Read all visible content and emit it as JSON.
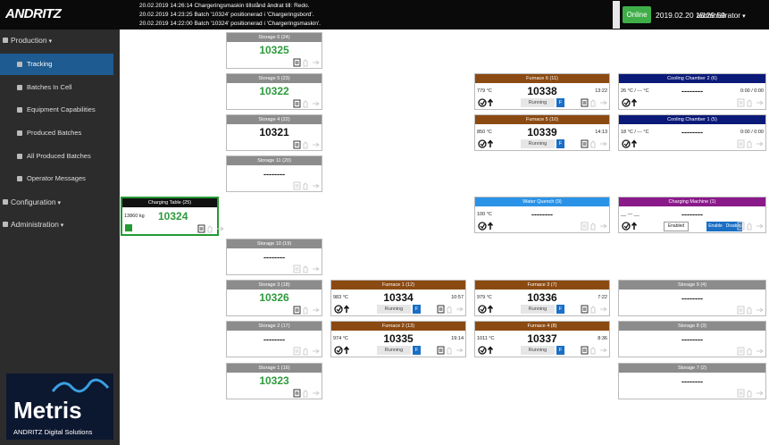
{
  "header": {
    "logo": "ANDRITZ",
    "messages": [
      "20.02.2019 14:26:14 Chargeringsmaskin tillstånd ändrat till: Redo.",
      "20.02.2019 14:23:25 Batch '10324' positionerad i 'Chargeringsbord'.",
      "20.02.2019 14:22:00 Batch '10324' positionerad i 'Chargeringsmaskin'."
    ],
    "status": "Online",
    "datetime": "2019.02.20 15:29:59",
    "user": "administrator"
  },
  "sidebar": {
    "items": [
      {
        "label": "Production",
        "level": 0
      },
      {
        "label": "Tracking",
        "level": 1,
        "selected": true
      },
      {
        "label": "Batches In Cell",
        "level": 1
      },
      {
        "label": "Equipment Capabilities",
        "level": 1
      },
      {
        "label": "Produced Batches",
        "level": 1
      },
      {
        "label": "All Produced Batches",
        "level": 1
      },
      {
        "label": "Operator Messages",
        "level": 1
      },
      {
        "label": "Configuration",
        "level": 0
      },
      {
        "label": "Administration",
        "level": 0
      }
    ],
    "brand": "Metris",
    "brand_sub": "ANDRITZ Digital Solutions"
  },
  "cards": [
    {
      "title": "Storage 6 (24)",
      "value": "10325",
      "header_color": "#8c8c8c",
      "value_color": "#2e9a3c"
    },
    {
      "title": "Storage 5 (23)",
      "value": "10322",
      "header_color": "#8c8c8c",
      "value_color": "#2e9a3c"
    },
    {
      "title": "Storage 4 (22)",
      "value": "10321",
      "header_color": "#8c8c8c",
      "value_color": "#111111"
    },
    {
      "title": "Storage 11 (20)",
      "value": "--------",
      "header_color": "#8c8c8c",
      "value_color": "#111111"
    },
    {
      "title": "Charging Table (25)",
      "value": "10324",
      "weight": "13860 kg",
      "header_color": "#111111",
      "value_color": "#2e9a3c"
    },
    {
      "title": "Storage 10 (19)",
      "value": "--------",
      "header_color": "#8c8c8c",
      "value_color": "#111111"
    },
    {
      "title": "Storage 3 (18)",
      "value": "10326",
      "header_color": "#8c8c8c",
      "value_color": "#2e9a3c"
    },
    {
      "title": "Storage 2 (17)",
      "value": "--------",
      "header_color": "#8c8c8c",
      "value_color": "#111111"
    },
    {
      "title": "Storage 1 (16)",
      "value": "10323",
      "header_color": "#8c8c8c",
      "value_color": "#2e9a3c"
    },
    {
      "title": "Furnace 6 (11)",
      "value": "10338",
      "temp": "779 °C",
      "time": "13:22",
      "status": "Running",
      "flag": "F",
      "header_color": "#8b4a12",
      "value_color": "#111111"
    },
    {
      "title": "Furnace 5 (10)",
      "value": "10339",
      "temp": "850 °C",
      "time": "14:13",
      "status": "Running",
      "flag": "F",
      "header_color": "#8b4a12",
      "value_color": "#111111"
    },
    {
      "title": "Furnace 1 (12)",
      "value": "10334",
      "temp": "983 °C",
      "time": "10:57",
      "status": "Running",
      "flag": "F",
      "header_color": "#8b4a12",
      "value_color": "#111111"
    },
    {
      "title": "Furnace 2 (13)",
      "value": "10335",
      "temp": "974 °C",
      "time": "19:14",
      "status": "Running",
      "flag": "F",
      "header_color": "#8b4a12",
      "value_color": "#111111"
    },
    {
      "title": "Furnace 3 (7)",
      "value": "10336",
      "temp": "979 °C",
      "time": "7:22",
      "status": "Running",
      "flag": "F",
      "header_color": "#8b4a12",
      "value_color": "#111111"
    },
    {
      "title": "Furnace 4 (8)",
      "value": "10337",
      "temp": "1011 °C",
      "time": "8:36",
      "status": "Running",
      "flag": "F",
      "header_color": "#8b4a12",
      "value_color": "#111111"
    },
    {
      "title": "Water Quench (9)",
      "value": "--------",
      "temp": "100 °C",
      "header_color": "#2a93e8",
      "value_color": "#111111"
    },
    {
      "title": "Cooling Chamber 2 (6)",
      "value": "--------",
      "temp": "26 °C / --- °C",
      "time": "0:00 / 0:00",
      "header_color": "#0b1a78",
      "value_color": "#111111"
    },
    {
      "title": "Cooling Chamber 1 (5)",
      "value": "--------",
      "temp": "18 °C / --- °C",
      "time": "0:00 / 0:00",
      "header_color": "#0b1a78",
      "value_color": "#111111"
    },
    {
      "title": "Charging Machine (1)",
      "value": "--------",
      "temp": "__ — __",
      "buttons": [
        "Enabled",
        "Enable",
        "Disable"
      ],
      "header_color": "#8a1a8a",
      "value_color": "#111111"
    },
    {
      "title": "Storage 9 (4)",
      "value": "--------",
      "header_color": "#8c8c8c",
      "value_color": "#111111"
    },
    {
      "title": "Storage 8 (3)",
      "value": "--------",
      "header_color": "#8c8c8c",
      "value_color": "#111111"
    },
    {
      "title": "Storage 7 (2)",
      "value": "--------",
      "header_color": "#8c8c8c",
      "value_color": "#111111"
    }
  ]
}
